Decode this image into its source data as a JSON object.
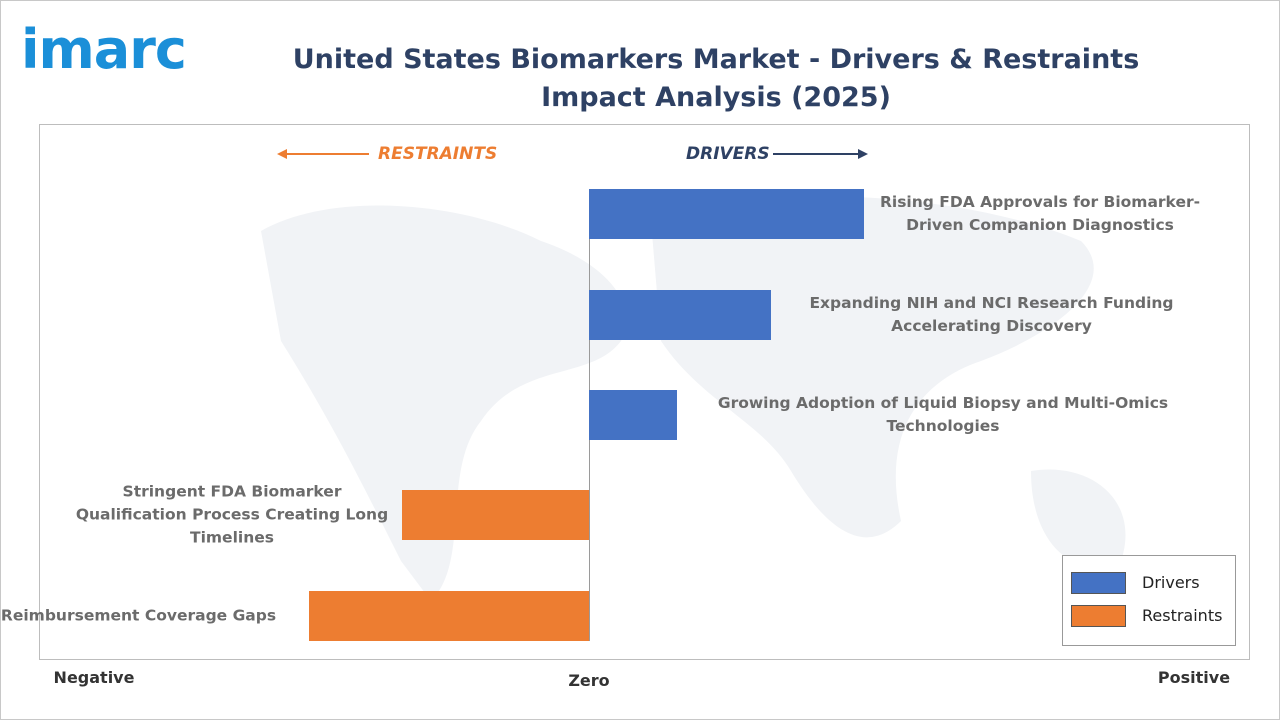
{
  "logo": "imarc",
  "chart_data": {
    "type": "bar",
    "orientation": "horizontal",
    "title": "United States Biomarkers Market - Drivers & Restraints Impact Analysis (2025)",
    "annotations": [
      "RESTRAINTS",
      "DRIVERS"
    ],
    "categories": [
      "Rising FDA Approvals for Biomarker-Driven Companion Diagnostics",
      "Expanding NIH and NCI Research Funding Accelerating Discovery",
      "Growing Adoption of Liquid Biopsy and Multi-Omics Technologies",
      "Stringent FDA Biomarker Qualification Process Creating Long Timelines",
      "Reimbursement Coverage Gaps"
    ],
    "series": [
      {
        "name": "Drivers",
        "color": "#4472c4",
        "values": [
          5,
          3.3,
          1.6,
          null,
          null
        ]
      },
      {
        "name": "Restraints",
        "color": "#ed7d31",
        "values": [
          null,
          null,
          null,
          -3.4,
          -5.1
        ]
      }
    ],
    "xlim": [
      -10,
      12
    ],
    "xticks": [
      {
        "value": -9,
        "label": "Negative"
      },
      {
        "value": 0,
        "label": "Zero"
      },
      {
        "value": 11,
        "label": "Positive"
      }
    ],
    "legend": "lower right"
  }
}
